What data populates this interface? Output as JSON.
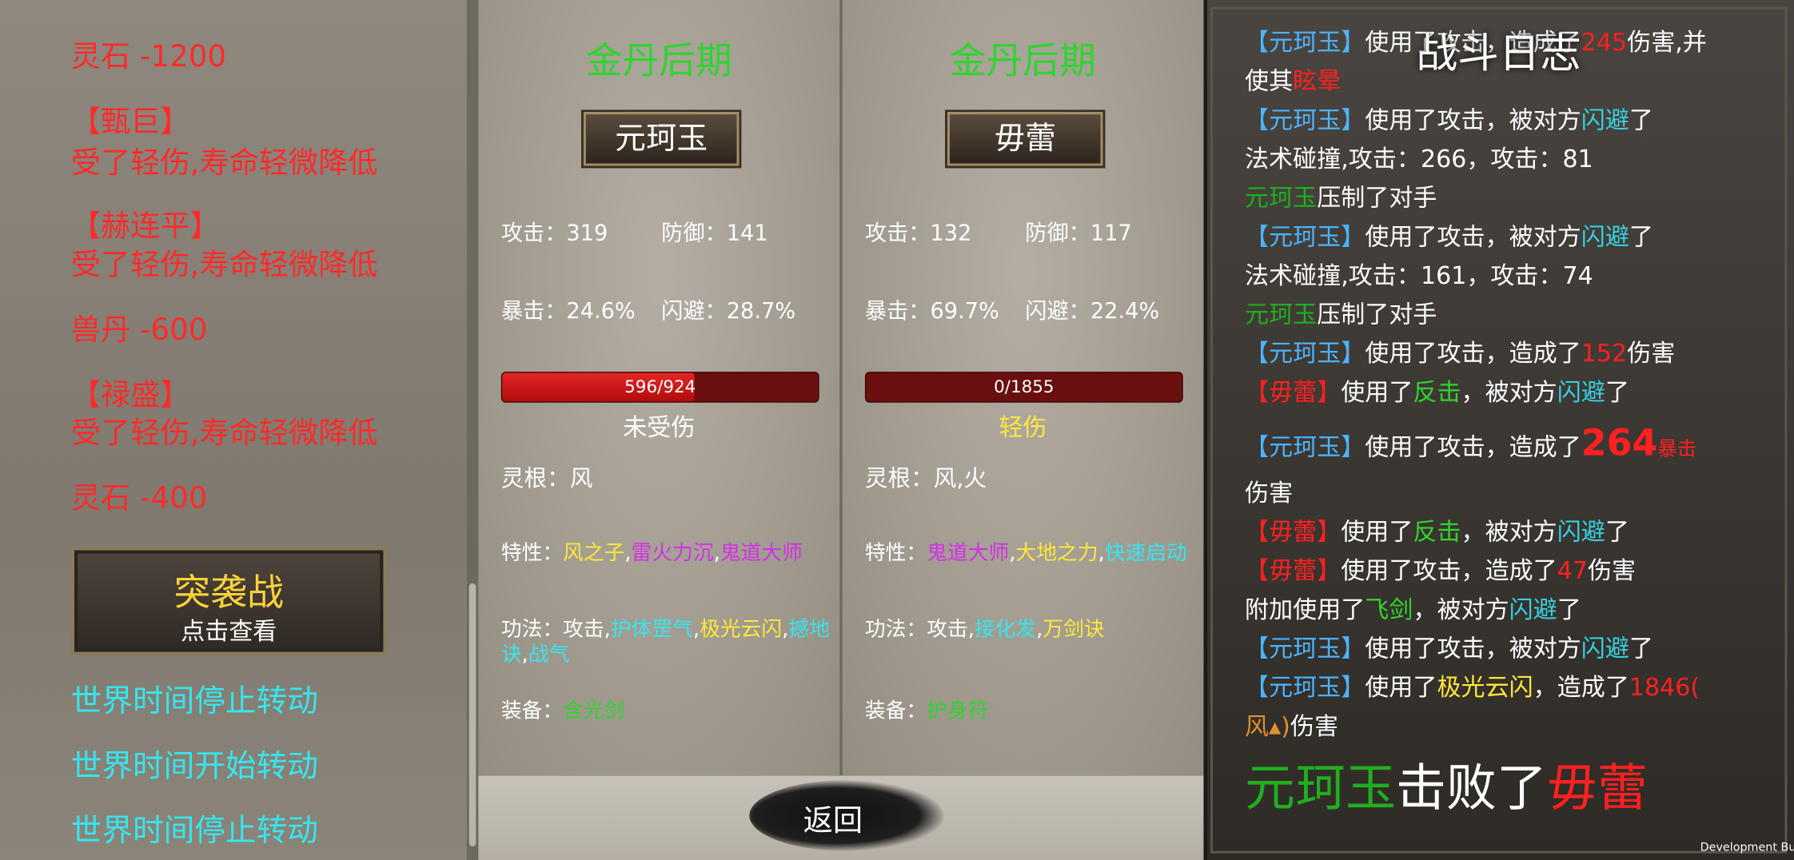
{
  "left_log": {
    "items": [
      {
        "t": "灵石 -1200",
        "c": "#ff2a2a"
      },
      {
        "t": "【甄巨】",
        "c": "#ff2a2a"
      },
      {
        "t": "受了轻伤,寿命轻微降低",
        "c": "#ff2a2a"
      },
      {
        "t": "【赫连平】",
        "c": "#ff2a2a"
      },
      {
        "t": "受了轻伤,寿命轻微降低",
        "c": "#ff2a2a"
      },
      {
        "t": "兽丹 -600",
        "c": "#ff2a2a"
      },
      {
        "t": "【禄盛】",
        "c": "#ff2a2a"
      },
      {
        "t": "受了轻伤,寿命轻微降低",
        "c": "#ff2a2a"
      },
      {
        "t": "灵石 -400",
        "c": "#ff2a2a"
      }
    ],
    "button": {
      "title": "突袭战",
      "subtitle": "点击查看"
    },
    "after": [
      {
        "t": "世界时间停止转动",
        "c": "#35e6f0"
      },
      {
        "t": "世界时间开始转动",
        "c": "#35e6f0"
      },
      {
        "t": "世界时间停止转动",
        "c": "#35e6f0"
      }
    ]
  },
  "fighters": [
    {
      "realm": "金丹后期",
      "name": "元珂玉",
      "stats": [
        "攻击：319",
        "防御：141",
        "暴击：24.6%",
        "闪避：28.7%"
      ],
      "hp": "596/924",
      "status": "未受伤",
      "status_color": "#ffffff",
      "root": "灵根：风",
      "traits": [
        {
          "t": "特性：",
          "c": "#ffffff"
        },
        {
          "t": "风之子",
          "c": "#ffe83a"
        },
        {
          "t": ",",
          "c": "#ffffff"
        },
        {
          "t": "雷火力沉",
          "c": "#d42fe6"
        },
        {
          "t": ",",
          "c": "#ffffff"
        },
        {
          "t": "鬼道大师",
          "c": "#d42fe6"
        }
      ],
      "skills": [
        {
          "t": "功法：攻击,",
          "c": "#ffffff"
        },
        {
          "t": "护体罡气",
          "c": "#35e6f0"
        },
        {
          "t": ",",
          "c": "#ffffff"
        },
        {
          "t": "极光云闪",
          "c": "#ffe83a"
        },
        {
          "t": ",",
          "c": "#ffffff"
        },
        {
          "t": "撼地诀",
          "c": "#35e6f0"
        },
        {
          "t": ",",
          "c": "#ffffff"
        },
        {
          "t": "战气",
          "c": "#35e6f0"
        }
      ],
      "equip": [
        {
          "t": "装备：",
          "c": "#ffffff"
        },
        {
          "t": "含光剑",
          "c": "#2fd42f"
        }
      ]
    },
    {
      "realm": "金丹后期",
      "name": "毋蕾",
      "stats": [
        "攻击：132",
        "防御：117",
        "暴击：69.7%",
        "闪避：22.4%"
      ],
      "hp": "0/1855",
      "status": "轻伤",
      "status_color": "#ffe83a",
      "root": "灵根：风,火",
      "traits": [
        {
          "t": "特性：",
          "c": "#ffffff"
        },
        {
          "t": "鬼道大师",
          "c": "#d42fe6"
        },
        {
          "t": ",",
          "c": "#ffffff"
        },
        {
          "t": "大地之力",
          "c": "#ffe83a"
        },
        {
          "t": ",",
          "c": "#ffffff"
        },
        {
          "t": "快速启动",
          "c": "#35e6f0"
        }
      ],
      "skills": [
        {
          "t": "功法：攻击,",
          "c": "#ffffff"
        },
        {
          "t": "接化发",
          "c": "#35e6f0"
        },
        {
          "t": ",",
          "c": "#ffffff"
        },
        {
          "t": "万剑诀",
          "c": "#ffe83a"
        }
      ],
      "equip": [
        {
          "t": "装备：",
          "c": "#ffffff"
        },
        {
          "t": "护身符",
          "c": "#2fd42f"
        }
      ]
    }
  ],
  "back_button": "返回",
  "battle_log": {
    "title": "战斗日志",
    "lines": [
      [
        {
          "t": "【元珂玉】",
          "c": "#4cb4ff"
        },
        {
          "t": "使用了攻击，造成了",
          "c": "#ffffff"
        },
        {
          "t": "245",
          "c": "#ff2020"
        },
        {
          "t": "伤害,并",
          "c": "#ffffff"
        }
      ],
      [
        {
          "t": "使其",
          "c": "#ffffff"
        },
        {
          "t": "眩晕",
          "c": "#ff2020"
        }
      ],
      [
        {
          "t": "【元珂玉】",
          "c": "#4cb4ff"
        },
        {
          "t": "使用了攻击，被对方",
          "c": "#ffffff"
        },
        {
          "t": "闪避",
          "c": "#35d0e0"
        },
        {
          "t": "了",
          "c": "#ffffff"
        }
      ],
      [
        {
          "t": "法术碰撞,攻击：266，攻击：81",
          "c": "#ffffff"
        }
      ],
      [
        {
          "t": "元珂玉",
          "c": "#1fae1f"
        },
        {
          "t": "压制了对手",
          "c": "#ffffff"
        }
      ],
      [
        {
          "t": "【元珂玉】",
          "c": "#4cb4ff"
        },
        {
          "t": "使用了攻击，被对方",
          "c": "#ffffff"
        },
        {
          "t": "闪避",
          "c": "#35d0e0"
        },
        {
          "t": "了",
          "c": "#ffffff"
        }
      ],
      [
        {
          "t": "法术碰撞,攻击：161，攻击：74",
          "c": "#ffffff"
        }
      ],
      [
        {
          "t": "元珂玉",
          "c": "#1fae1f"
        },
        {
          "t": "压制了对手",
          "c": "#ffffff"
        }
      ],
      [
        {
          "t": "【元珂玉】",
          "c": "#4cb4ff"
        },
        {
          "t": "使用了攻击，造成了",
          "c": "#ffffff"
        },
        {
          "t": "152",
          "c": "#ff2020"
        },
        {
          "t": "伤害",
          "c": "#ffffff"
        }
      ],
      [
        {
          "t": "【毋蕾】",
          "c": "#ff2020"
        },
        {
          "t": "使用了",
          "c": "#ffffff"
        },
        {
          "t": "反击",
          "c": "#2fd42f"
        },
        {
          "t": "，被对方",
          "c": "#ffffff"
        },
        {
          "t": "闪避",
          "c": "#35d0e0"
        },
        {
          "t": "了",
          "c": "#ffffff"
        }
      ],
      [
        {
          "t": "【元珂玉】",
          "c": "#4cb4ff"
        },
        {
          "t": "使用了攻击，造成了",
          "c": "#ffffff"
        },
        {
          "t": "264",
          "c": "#ff2020"
        },
        {
          "t": "暴击",
          "c": "#ff2020"
        }
      ],
      [
        {
          "t": "伤害",
          "c": "#ffffff"
        }
      ],
      [
        {
          "t": "【毋蕾】",
          "c": "#ff2020"
        },
        {
          "t": "使用了",
          "c": "#ffffff"
        },
        {
          "t": "反击",
          "c": "#2fd42f"
        },
        {
          "t": "，被对方",
          "c": "#ffffff"
        },
        {
          "t": "闪避",
          "c": "#35d0e0"
        },
        {
          "t": "了",
          "c": "#ffffff"
        }
      ],
      [
        {
          "t": "【毋蕾】",
          "c": "#ff2020"
        },
        {
          "t": "使用了攻击，造成了",
          "c": "#ffffff"
        },
        {
          "t": "47",
          "c": "#ff2020"
        },
        {
          "t": "伤害",
          "c": "#ffffff"
        }
      ],
      [
        {
          "t": "附加使用了",
          "c": "#ffffff"
        },
        {
          "t": "飞剑",
          "c": "#2fd42f"
        },
        {
          "t": "，被对方",
          "c": "#ffffff"
        },
        {
          "t": "闪避",
          "c": "#35d0e0"
        },
        {
          "t": "了",
          "c": "#ffffff"
        }
      ],
      [
        {
          "t": "【元珂玉】",
          "c": "#4cb4ff"
        },
        {
          "t": "使用了攻击，被对方",
          "c": "#ffffff"
        },
        {
          "t": "闪避",
          "c": "#35d0e0"
        },
        {
          "t": "了",
          "c": "#ffffff"
        }
      ],
      [
        {
          "t": "【元珂玉】",
          "c": "#4cb4ff"
        },
        {
          "t": "使用了",
          "c": "#ffffff"
        },
        {
          "t": "极光云闪",
          "c": "#ffe83a"
        },
        {
          "t": "，造成了",
          "c": "#ffffff"
        },
        {
          "t": "1846(",
          "c": "#ff2020"
        }
      ],
      [
        {
          "t": "风▴)",
          "c": "#e0902e"
        },
        {
          "t": "伤害",
          "c": "#ffffff"
        }
      ]
    ],
    "result": [
      {
        "t": "元珂玉",
        "c": "#1fae1f"
      },
      {
        "t": "击败了",
        "c": "#ffffff"
      },
      {
        "t": "毋蕾",
        "c": "#ff2020"
      }
    ]
  },
  "footer": "Development Build"
}
